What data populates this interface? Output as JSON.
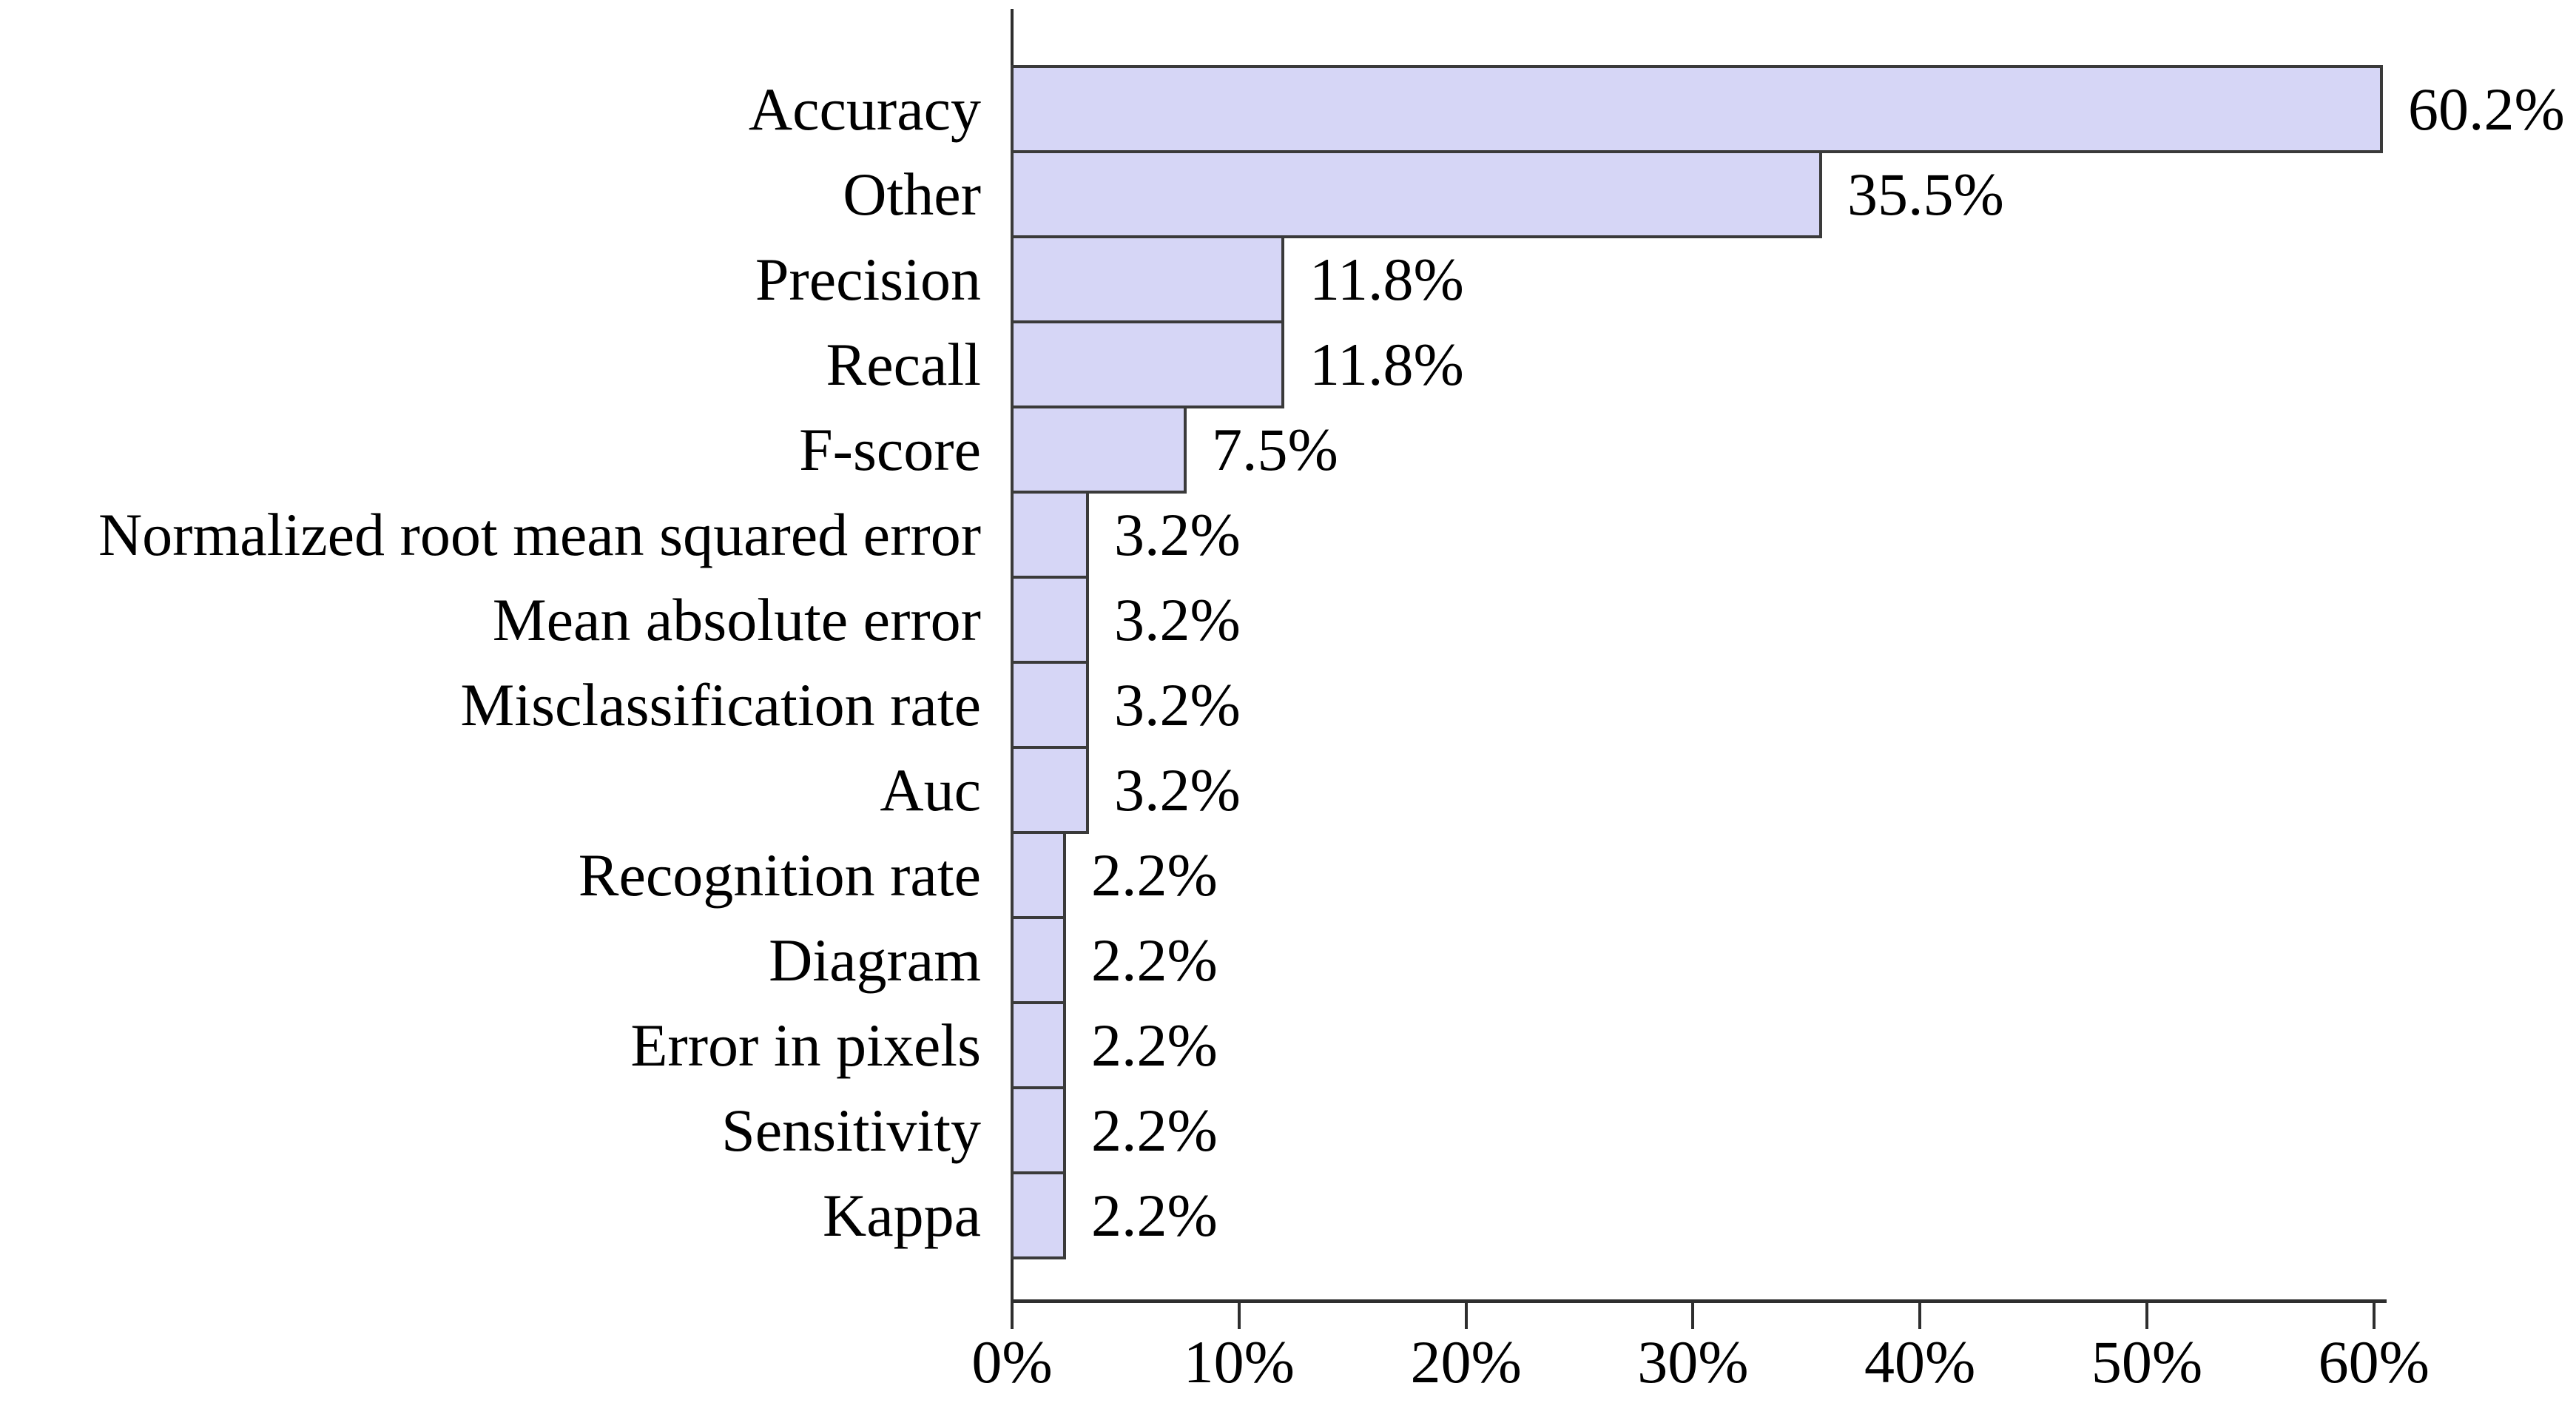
{
  "chart_data": {
    "type": "bar",
    "orientation": "horizontal",
    "title": "",
    "xlabel": "",
    "ylabel": "",
    "categories": [
      "Accuracy",
      "Other",
      "Precision",
      "Recall",
      "F-score",
      "Normalized root mean squared error",
      "Mean absolute error",
      "Misclassification rate",
      "Auc",
      "Recognition rate",
      "Diagram",
      "Error in pixels",
      "Sensitivity",
      "Kappa"
    ],
    "values": [
      60.2,
      35.5,
      11.8,
      11.8,
      7.5,
      3.2,
      3.2,
      3.2,
      3.2,
      2.2,
      2.2,
      2.2,
      2.2,
      2.2
    ],
    "value_labels": [
      "60.2%",
      "35.5%",
      "11.8%",
      "11.8%",
      "7.5%",
      "3.2%",
      "3.2%",
      "3.2%",
      "3.2%",
      "2.2%",
      "2.2%",
      "2.2%",
      "2.2%",
      "2.2%"
    ],
    "xlim": [
      0,
      60
    ],
    "x_tick_values": [
      0,
      10,
      20,
      30,
      40,
      50,
      60
    ],
    "x_ticks": [
      "0%",
      "10%",
      "20%",
      "30%",
      "40%",
      "50%",
      "60%"
    ],
    "grid": false,
    "legend": false,
    "colors": {
      "bar_fill": "#d6d6f6",
      "bar_border": "#3a3a3a",
      "axis_color": "#2e2e2e",
      "text_color": "#000000",
      "background": "#ffffff"
    }
  }
}
